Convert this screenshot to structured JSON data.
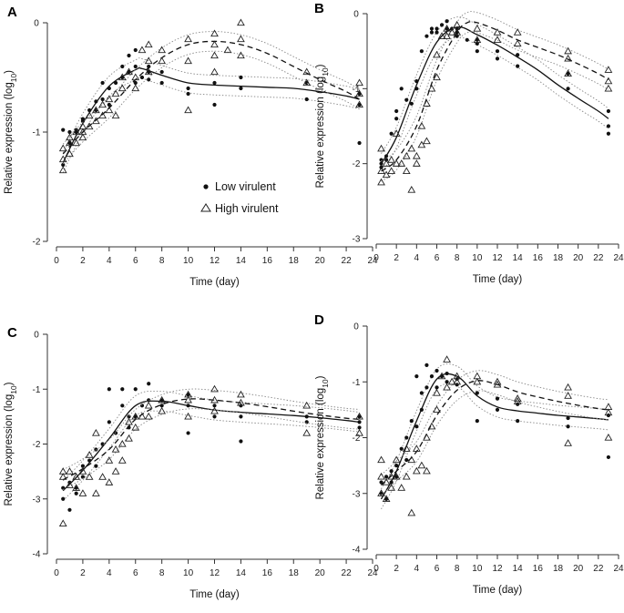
{
  "figure": {
    "legend": {
      "low_label": "Low virulent",
      "high_label": "High virulent"
    },
    "sub": "10"
  },
  "chart_data": [
    {
      "panel": "A",
      "type": "scatter",
      "xlabel": "Time (day)",
      "ylabel": "Relative expression (log",
      "ylabel_sub": "10",
      "ylabel_end": ")",
      "xlim": [
        0,
        24
      ],
      "ylim": [
        -2,
        0
      ],
      "xticks": [
        "0",
        "2",
        "4",
        "6",
        "8",
        "10",
        "12",
        "14",
        "16",
        "18",
        "20",
        "22",
        "24"
      ],
      "yticks": [
        "0",
        "-1",
        "-2"
      ],
      "series": [
        {
          "name": "Low virulent",
          "marker": "dot",
          "line": "solid",
          "x": [
            0.5,
            0.5,
            1,
            1,
            1.5,
            1.5,
            2,
            2,
            2.5,
            3,
            3,
            3.5,
            3.5,
            4,
            4,
            4.5,
            5,
            5,
            5.5,
            5.5,
            6,
            6,
            6,
            6.5,
            7,
            7,
            7,
            8,
            8,
            10,
            10,
            12,
            12,
            14,
            14,
            19,
            19,
            23,
            23,
            23
          ],
          "y": [
            -1.3,
            -0.98,
            -1.1,
            -1.0,
            -0.98,
            -1.0,
            -0.9,
            -0.88,
            -0.8,
            -0.72,
            -0.8,
            -0.55,
            -0.7,
            -0.6,
            -0.75,
            -0.55,
            -0.4,
            -0.5,
            -0.3,
            -0.45,
            -0.4,
            -0.25,
            -0.55,
            -0.5,
            -0.45,
            -0.52,
            -0.4,
            -0.55,
            -0.45,
            -0.6,
            -0.65,
            -0.55,
            -0.75,
            -0.5,
            -0.6,
            -0.55,
            -0.7,
            -0.65,
            -0.75,
            -1.1
          ],
          "fit_x": [
            0.5,
            2,
            4,
            6,
            6.5,
            8,
            10,
            12,
            14,
            16,
            18,
            20,
            22,
            23
          ],
          "fit_y": [
            -1.28,
            -0.92,
            -0.58,
            -0.43,
            -0.42,
            -0.48,
            -0.55,
            -0.57,
            -0.58,
            -0.59,
            -0.6,
            -0.63,
            -0.67,
            -0.7
          ]
        },
        {
          "name": "High virulent",
          "marker": "triangle",
          "line": "dashed",
          "x": [
            0.5,
            0.5,
            0.5,
            1,
            1,
            1,
            1.5,
            1.5,
            2,
            2,
            2,
            2.5,
            2.5,
            3,
            3,
            3.5,
            3.5,
            4,
            4,
            4.5,
            4.5,
            5,
            5,
            5.5,
            6,
            6,
            6.5,
            7,
            7,
            7,
            8,
            8,
            10,
            10,
            10,
            12,
            12,
            12,
            12,
            13,
            14,
            14,
            14,
            19,
            19,
            23,
            23,
            23
          ],
          "y": [
            -1.15,
            -1.25,
            -1.35,
            -1.05,
            -1.2,
            -1.1,
            -1.0,
            -1.1,
            -0.95,
            -1.05,
            -1.0,
            -0.85,
            -0.95,
            -0.8,
            -0.9,
            -0.75,
            -0.85,
            -0.7,
            -0.8,
            -0.65,
            -0.85,
            -0.5,
            -0.6,
            -0.45,
            -0.5,
            -0.6,
            -0.25,
            -0.2,
            -0.35,
            -0.45,
            -0.25,
            -0.35,
            -0.15,
            -0.35,
            -0.8,
            -0.1,
            -0.2,
            -0.3,
            -0.45,
            -0.25,
            0.0,
            -0.15,
            -0.3,
            -0.45,
            -0.55,
            -0.55,
            -0.65,
            -0.75
          ],
          "fit_x": [
            0.5,
            2,
            4,
            6,
            8,
            10,
            12,
            14,
            16,
            18,
            20,
            22,
            23
          ],
          "fit_y": [
            -1.2,
            -1.0,
            -0.78,
            -0.52,
            -0.32,
            -0.2,
            -0.17,
            -0.2,
            -0.28,
            -0.4,
            -0.52,
            -0.63,
            -0.7
          ]
        }
      ]
    },
    {
      "panel": "B",
      "type": "scatter",
      "xlabel": "Time (day)",
      "ylabel": "Relative expression (log",
      "ylabel_sub": "10",
      "ylabel_end": ")",
      "xlim": [
        0,
        24
      ],
      "ylim": [
        -3,
        0
      ],
      "xticks": [
        "0",
        "2",
        "4",
        "6",
        "8",
        "10",
        "12",
        "14",
        "16",
        "18",
        "20",
        "22",
        "24"
      ],
      "yticks": [
        "0",
        "-1",
        "-2",
        "-3"
      ],
      "series": [
        {
          "name": "Low virulent",
          "marker": "dot",
          "line": "solid",
          "x": [
            0.5,
            0.5,
            0.5,
            1,
            1,
            1.5,
            2,
            2,
            2.5,
            3,
            3.5,
            4,
            4,
            4.5,
            5,
            5.5,
            5.5,
            6,
            6,
            6.5,
            7,
            7,
            7.5,
            8,
            8,
            8,
            9,
            10,
            10,
            10,
            12,
            12,
            14,
            14,
            19,
            19,
            23,
            23,
            23
          ],
          "y": [
            -2.0,
            -2.05,
            -1.95,
            -1.95,
            -1.9,
            -1.6,
            -1.3,
            -1.4,
            -1.0,
            -1.15,
            -1.2,
            -0.9,
            -1.0,
            -0.5,
            -0.3,
            -0.2,
            -0.25,
            -0.25,
            -0.2,
            -0.15,
            -0.1,
            -0.2,
            -0.2,
            -0.2,
            -0.3,
            -0.25,
            -0.35,
            -0.35,
            -0.4,
            -0.5,
            -0.5,
            -0.6,
            -0.55,
            -0.7,
            -0.8,
            -1.0,
            -1.3,
            -1.5,
            -1.6
          ],
          "fit_x": [
            0.5,
            2,
            4,
            6,
            8,
            10,
            12,
            14,
            16,
            18,
            20,
            22,
            23
          ],
          "fit_y": [
            -2.0,
            -1.65,
            -0.95,
            -0.38,
            -0.18,
            -0.28,
            -0.42,
            -0.58,
            -0.75,
            -0.95,
            -1.13,
            -1.3,
            -1.4
          ]
        },
        {
          "name": "High virulent",
          "marker": "triangle",
          "line": "dashed",
          "x": [
            0.5,
            0.5,
            0.5,
            1,
            1,
            1.5,
            1.5,
            2,
            2,
            2.5,
            3,
            3,
            3.5,
            3.5,
            4,
            4,
            4.5,
            4.5,
            5,
            5,
            5.5,
            6,
            6,
            6.5,
            7,
            7,
            7.5,
            8,
            8,
            10,
            10,
            12,
            12,
            14,
            14,
            19,
            19,
            19,
            23,
            23,
            23
          ],
          "y": [
            -1.8,
            -2.1,
            -2.25,
            -2.0,
            -2.15,
            -1.95,
            -2.1,
            -1.6,
            -2.0,
            -2.0,
            -1.9,
            -2.1,
            -2.35,
            -1.8,
            -1.9,
            -2.0,
            -1.75,
            -1.5,
            -1.7,
            -1.2,
            -1.0,
            -0.85,
            -0.55,
            -0.3,
            -0.2,
            -0.3,
            -0.25,
            -0.15,
            -0.25,
            -0.2,
            -0.35,
            -0.25,
            -0.35,
            -0.25,
            -0.4,
            -0.5,
            -0.6,
            -0.8,
            -0.75,
            -0.9,
            -1.0
          ],
          "fit_x": [
            0.5,
            2,
            4,
            6,
            8,
            9,
            10,
            12,
            14,
            16,
            18,
            20,
            22,
            23
          ],
          "fit_y": [
            -2.1,
            -1.95,
            -1.5,
            -0.75,
            -0.25,
            -0.12,
            -0.12,
            -0.22,
            -0.35,
            -0.45,
            -0.55,
            -0.67,
            -0.8,
            -0.88
          ]
        }
      ]
    },
    {
      "panel": "C",
      "type": "scatter",
      "xlabel": "Time (day)",
      "ylabel": "Relative expression (log",
      "ylabel_sub": "10",
      "ylabel_end": ")",
      "xlim": [
        0,
        24
      ],
      "ylim": [
        -4,
        0
      ],
      "xticks": [
        "0",
        "2",
        "4",
        "6",
        "8",
        "10",
        "12",
        "14",
        "16",
        "18",
        "20",
        "22",
        "24"
      ],
      "yticks": [
        "0",
        "-1",
        "-2",
        "-3",
        "-4"
      ],
      "series": [
        {
          "name": "Low virulent",
          "marker": "dot",
          "line": "solid",
          "x": [
            0.5,
            0.5,
            1,
            1,
            1.5,
            1.5,
            2,
            2,
            2.5,
            3,
            3,
            3.5,
            4,
            4,
            4.5,
            5,
            5,
            5.5,
            5.5,
            6,
            6,
            6.5,
            7,
            7,
            8,
            8,
            10,
            10,
            10,
            12,
            12,
            14,
            14,
            14,
            19,
            19,
            23,
            23,
            23
          ],
          "y": [
            -2.8,
            -3.0,
            -3.2,
            -2.7,
            -2.8,
            -2.9,
            -2.6,
            -2.4,
            -2.3,
            -2.1,
            -2.4,
            -2.0,
            -1.0,
            -1.6,
            -1.8,
            -1.0,
            -1.3,
            -1.5,
            -1.7,
            -1.0,
            -1.5,
            -1.3,
            -0.9,
            -1.2,
            -1.2,
            -1.3,
            -1.1,
            -1.3,
            -1.8,
            -1.3,
            -1.5,
            -1.3,
            -1.5,
            -1.95,
            -1.5,
            -1.6,
            -1.5,
            -1.6,
            -1.7
          ],
          "fit_x": [
            0.5,
            2,
            4,
            6,
            8,
            10,
            12,
            14,
            16,
            18,
            20,
            22,
            23
          ],
          "fit_y": [
            -2.85,
            -2.48,
            -1.9,
            -1.3,
            -1.22,
            -1.3,
            -1.38,
            -1.42,
            -1.45,
            -1.48,
            -1.52,
            -1.57,
            -1.6
          ]
        },
        {
          "name": "High virulent",
          "marker": "triangle",
          "line": "dashed",
          "x": [
            0.5,
            0.5,
            0.5,
            1,
            1,
            1.5,
            1.5,
            2,
            2,
            2.5,
            2.5,
            3,
            3,
            3.5,
            4,
            4,
            4.5,
            4.5,
            5,
            5,
            5.5,
            5.5,
            6,
            6,
            6.5,
            7,
            7,
            8,
            8,
            10,
            10,
            10,
            12,
            12,
            12,
            14,
            14,
            19,
            19,
            23,
            23
          ],
          "y": [
            -2.5,
            -2.6,
            -3.45,
            -2.5,
            -2.75,
            -2.6,
            -2.8,
            -2.5,
            -2.9,
            -2.2,
            -2.6,
            -1.8,
            -2.9,
            -2.6,
            -2.3,
            -2.7,
            -2.1,
            -2.5,
            -2.0,
            -2.3,
            -1.6,
            -1.9,
            -1.5,
            -1.7,
            -1.5,
            -1.3,
            -1.5,
            -1.2,
            -1.4,
            -1.1,
            -1.2,
            -1.5,
            -1.0,
            -1.2,
            -1.4,
            -1.1,
            -1.25,
            -1.3,
            -1.8,
            -1.5,
            -1.8
          ],
          "fit_x": [
            0.5,
            2,
            4,
            6,
            8,
            10,
            12,
            14,
            16,
            18,
            20,
            22,
            23
          ],
          "fit_y": [
            -2.65,
            -2.45,
            -2.1,
            -1.55,
            -1.28,
            -1.18,
            -1.2,
            -1.25,
            -1.32,
            -1.4,
            -1.47,
            -1.53,
            -1.55
          ]
        }
      ]
    },
    {
      "panel": "D",
      "type": "scatter",
      "xlabel": "Time (day)",
      "ylabel": "Relative expression (log",
      "ylabel_sub": "10",
      "ylabel_end": ")",
      "xlim": [
        0,
        24
      ],
      "ylim": [
        -4,
        0
      ],
      "xticks": [
        "0",
        "2",
        "4",
        "6",
        "8",
        "10",
        "12",
        "14",
        "16",
        "18",
        "20",
        "22",
        "24"
      ],
      "yticks": [
        "0",
        "-1",
        "-2",
        "-3",
        "-4"
      ],
      "series": [
        {
          "name": "Low virulent",
          "marker": "dot",
          "line": "solid",
          "x": [
            0.5,
            0.5,
            1,
            1,
            1.5,
            1.5,
            2,
            2,
            2.5,
            3,
            3,
            3.5,
            4,
            4,
            4.5,
            4.5,
            5,
            5,
            5.5,
            6,
            6,
            6.5,
            7,
            7,
            8,
            8,
            10,
            10,
            12,
            12,
            14,
            14,
            19,
            19,
            23,
            23
          ],
          "y": [
            -2.8,
            -3.0,
            -3.1,
            -2.7,
            -2.8,
            -2.6,
            -2.7,
            -2.5,
            -2.2,
            -2.0,
            -2.4,
            -1.7,
            -0.9,
            -1.8,
            -1.2,
            -1.5,
            -0.7,
            -1.1,
            -0.9,
            -0.8,
            -1.1,
            -0.9,
            -0.85,
            -1.0,
            -1.05,
            -0.95,
            -1.2,
            -1.7,
            -1.3,
            -1.5,
            -1.4,
            -1.7,
            -1.65,
            -1.8,
            -1.6,
            -2.35
          ],
          "fit_x": [
            0.5,
            2,
            4,
            6,
            8,
            10,
            12,
            14,
            16,
            18,
            20,
            22,
            23
          ],
          "fit_y": [
            -3.1,
            -2.6,
            -1.7,
            -0.95,
            -0.9,
            -1.25,
            -1.45,
            -1.52,
            -1.56,
            -1.6,
            -1.63,
            -1.66,
            -1.68
          ]
        },
        {
          "name": "High virulent",
          "marker": "triangle",
          "line": "dashed",
          "x": [
            0.5,
            0.5,
            0.5,
            1,
            1,
            1.5,
            1.5,
            2,
            2,
            2.5,
            3,
            3,
            3.5,
            3.5,
            4,
            4,
            4.5,
            5,
            5,
            5.5,
            6,
            6,
            6.5,
            7,
            7,
            7.5,
            8,
            8,
            10,
            10,
            12,
            12,
            14,
            14,
            19,
            19,
            19,
            23,
            23,
            23
          ],
          "y": [
            -2.4,
            -2.7,
            -3.0,
            -2.8,
            -3.1,
            -2.7,
            -2.9,
            -2.4,
            -2.7,
            -2.9,
            -2.2,
            -2.7,
            -2.4,
            -3.35,
            -2.2,
            -2.6,
            -2.5,
            -2.0,
            -2.6,
            -1.8,
            -1.2,
            -1.5,
            -0.9,
            -0.6,
            -1.1,
            -1.0,
            -0.9,
            -1.0,
            -0.9,
            -1.0,
            -1.0,
            -1.05,
            -1.3,
            -1.35,
            -1.1,
            -1.25,
            -2.1,
            -1.45,
            -1.55,
            -2.0
          ],
          "fit_x": [
            0.5,
            2,
            4,
            6,
            8,
            10,
            12,
            14,
            16,
            18,
            20,
            22,
            23
          ],
          "fit_y": [
            -2.85,
            -2.6,
            -2.25,
            -1.6,
            -1.15,
            -0.98,
            -1.05,
            -1.18,
            -1.27,
            -1.35,
            -1.42,
            -1.48,
            -1.5
          ]
        }
      ]
    }
  ]
}
